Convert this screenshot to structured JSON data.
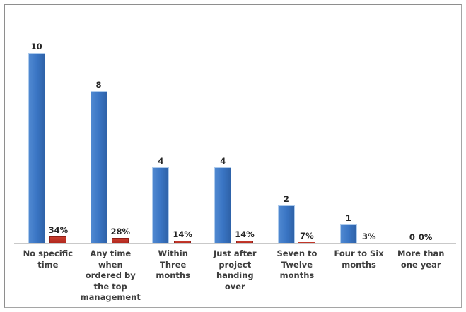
{
  "chart_data": {
    "type": "bar",
    "title": "",
    "xlabel": "",
    "ylabel": "",
    "ylim": [
      0,
      10
    ],
    "grid": false,
    "legend": false,
    "axis_colors": {
      "baseline": "#c9c9c9",
      "frame_border": "#a5a5a5"
    },
    "categories": [
      "No specific\ntime",
      "Any time\nwhen\nordered by\nthe top\nmanagement",
      "Within Three\nmonths",
      "Just after\nproject\nhanding over",
      "Seven to\nTwelve\nmonths",
      "Four to Six\nmonths",
      "More than\none year"
    ],
    "series": [
      {
        "name": "Count",
        "color": "#3a75c4",
        "values": [
          10,
          8,
          4,
          4,
          2,
          1,
          0
        ],
        "labels": [
          "10",
          "8",
          "4",
          "4",
          "2",
          "1",
          "0"
        ]
      },
      {
        "name": "Percentage",
        "color": "#b1271e",
        "values": [
          34,
          28,
          14,
          14,
          7,
          3,
          0
        ],
        "labels": [
          "34%",
          "28%",
          "14%",
          "14%",
          "7%",
          "3%",
          "0%"
        ]
      }
    ]
  }
}
